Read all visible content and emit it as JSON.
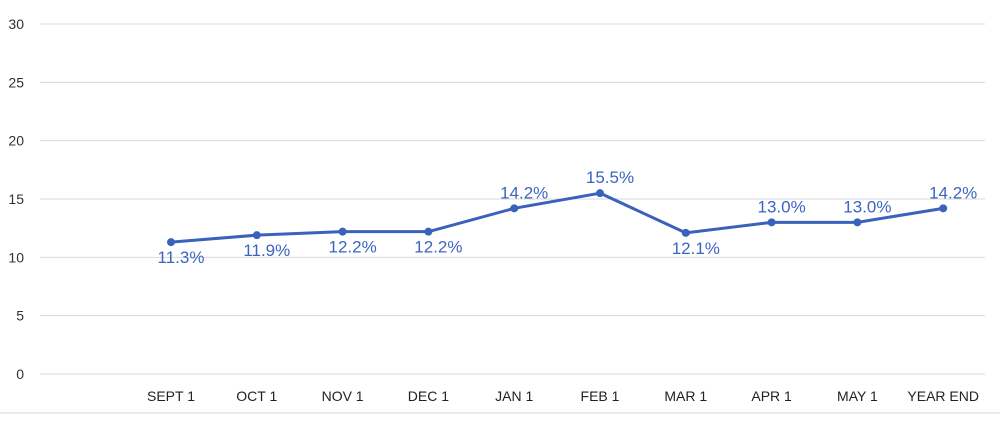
{
  "chart_data": {
    "type": "line",
    "categories": [
      "SEPT 1",
      "OCT 1",
      "NOV 1",
      "DEC 1",
      "JAN 1",
      "FEB 1",
      "MAR 1",
      "APR 1",
      "MAY 1",
      "YEAR END"
    ],
    "series": [
      {
        "values": [
          11.3,
          11.9,
          12.2,
          12.2,
          14.2,
          15.5,
          12.1,
          13.0,
          13.0,
          14.2
        ],
        "data_labels": [
          "11.3%",
          "11.9%",
          "12.2%",
          "12.2%",
          "14.2%",
          "15.5%",
          "12.1%",
          "13.0%",
          "13.0%",
          "14.2%"
        ],
        "color": "#3a62bd"
      }
    ],
    "yticks": [
      0,
      5,
      10,
      15,
      20,
      25,
      30
    ],
    "ylim": [
      0,
      30
    ],
    "grid": true,
    "legend": "none",
    "title": "",
    "xlabel": "",
    "ylabel": "",
    "label_color": "#3c64c0",
    "grid_color": "#d9d9d9"
  }
}
